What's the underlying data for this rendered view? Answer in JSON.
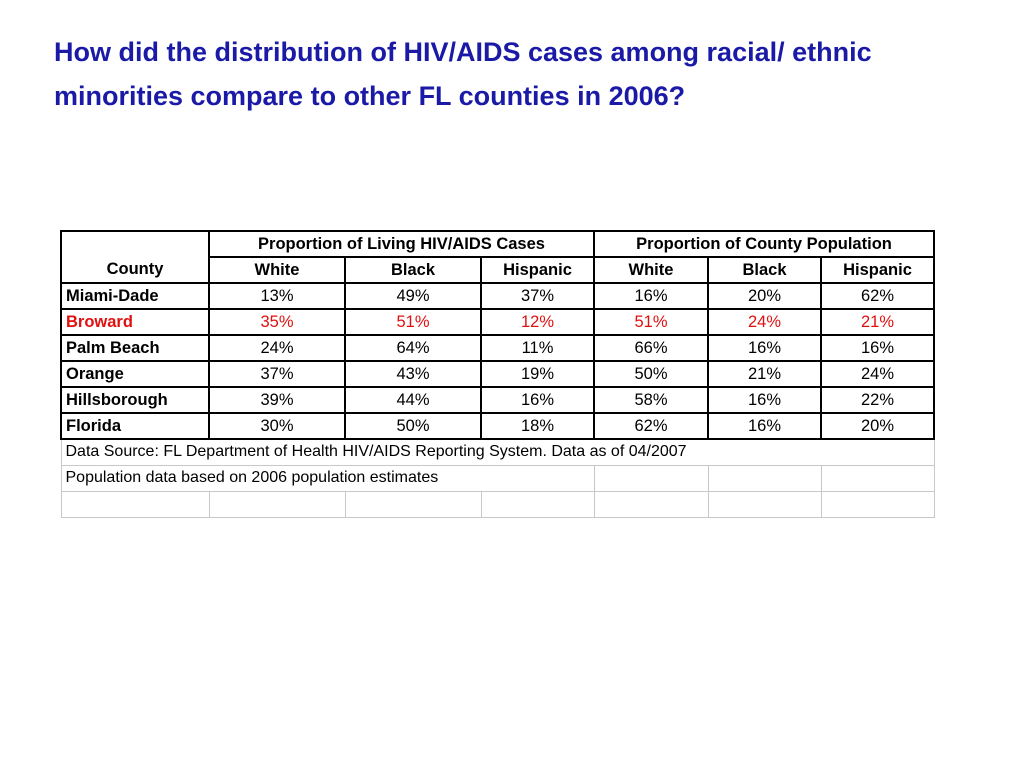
{
  "title": "How did the distribution of HIV/AIDS cases among racial/ ethnic minorities compare to other FL counties in 2006?",
  "table": {
    "county_header": "County",
    "groups": [
      "Proportion of Living HIV/AIDS Cases",
      "Proportion of County Population"
    ],
    "subheaders": [
      "White",
      "Black",
      "Hispanic",
      "White",
      "Black",
      "Hispanic"
    ],
    "rows": [
      {
        "county": "Miami-Dade",
        "values": [
          "13%",
          "49%",
          "37%",
          "16%",
          "20%",
          "62%"
        ]
      },
      {
        "county": "Broward",
        "values": [
          "35%",
          "51%",
          "12%",
          "51%",
          "24%",
          "21%"
        ]
      },
      {
        "county": "Palm Beach",
        "values": [
          "24%",
          "64%",
          "11%",
          "66%",
          "16%",
          "16%"
        ]
      },
      {
        "county": "Orange",
        "values": [
          "37%",
          "43%",
          "19%",
          "50%",
          "21%",
          "24%"
        ]
      },
      {
        "county": "Hillsborough",
        "values": [
          "39%",
          "44%",
          "16%",
          "58%",
          "16%",
          "22%"
        ]
      },
      {
        "county": "Florida",
        "values": [
          "30%",
          "50%",
          "18%",
          "62%",
          "16%",
          "20%"
        ]
      }
    ],
    "highlight_color": "#e01010"
  },
  "notes": {
    "source": "Data Source:  FL Department of Health HIV/AIDS Reporting System.  Data as of 04/2007",
    "population": "Population data based on 2006 population estimates"
  },
  "colors": {
    "title": "#1a1aa6",
    "highlight": "#e01010"
  }
}
